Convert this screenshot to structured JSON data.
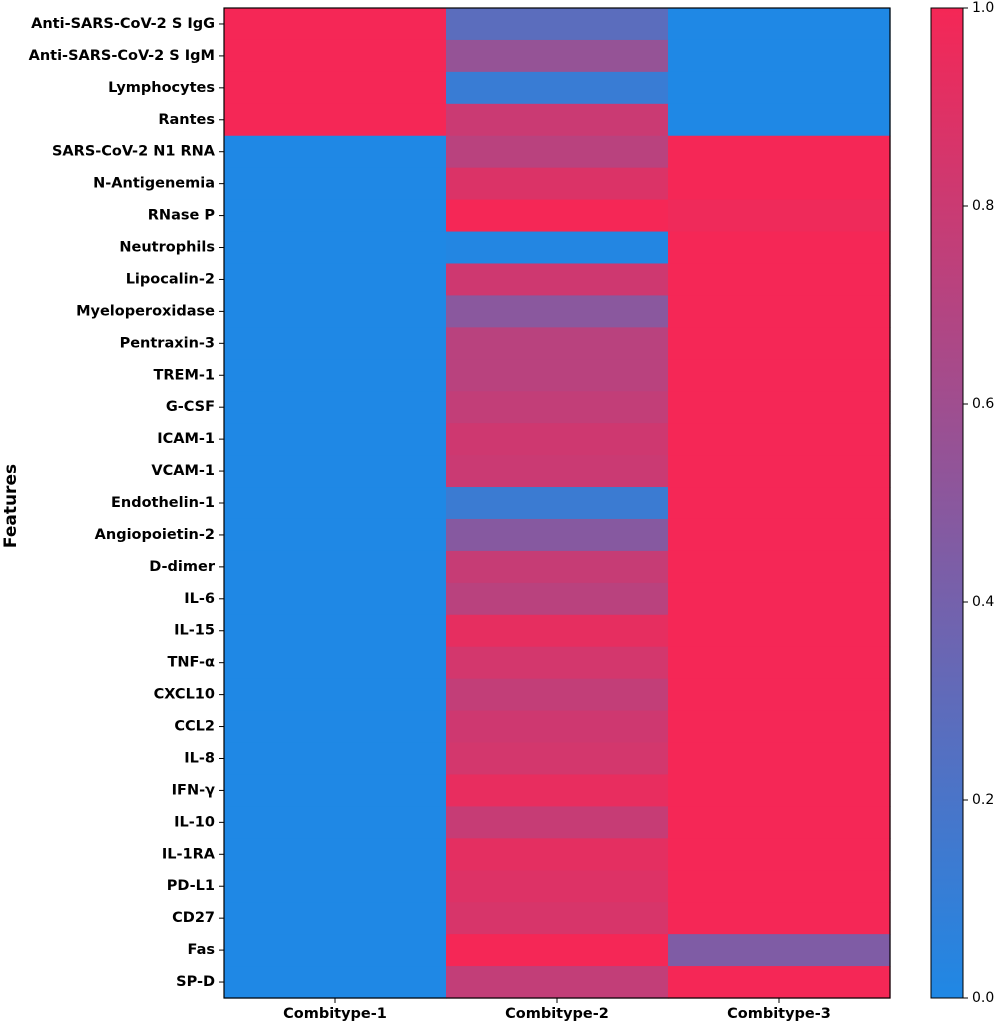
{
  "chart_data": {
    "type": "heatmap",
    "title": "",
    "xlabel": "",
    "ylabel": "Features",
    "columns": [
      "Combitype-1",
      "Combitype-2",
      "Combitype-3"
    ],
    "rows": [
      "Anti-SARS-CoV-2 S IgG",
      "Anti-SARS-CoV-2 S IgM",
      "Lymphocytes",
      "Rantes",
      "SARS-CoV-2 N1 RNA",
      "N-Antigenemia",
      "RNase P",
      "Neutrophils",
      "Lipocalin-2",
      "Myeloperoxidase",
      "Pentraxin-3",
      "TREM-1",
      "G-CSF",
      "ICAM-1",
      "VCAM-1",
      "Endothelin-1",
      "Angiopoietin-2",
      "D-dimer",
      "IL-6",
      "IL-15",
      "TNF-α",
      "CXCL10",
      "CCL2",
      "IL-8",
      "IFN-γ",
      "IL-10",
      "IL-1RA",
      "PD-L1",
      "CD27",
      "Fas",
      "SP-D"
    ],
    "values": [
      [
        1.0,
        0.28,
        0.0
      ],
      [
        1.0,
        0.55,
        0.0
      ],
      [
        1.0,
        0.12,
        0.0
      ],
      [
        1.0,
        0.8,
        0.0
      ],
      [
        0.0,
        0.72,
        1.0
      ],
      [
        0.0,
        0.88,
        1.0
      ],
      [
        0.0,
        1.0,
        0.97
      ],
      [
        0.0,
        0.02,
        1.0
      ],
      [
        0.0,
        0.82,
        1.0
      ],
      [
        0.0,
        0.5,
        1.0
      ],
      [
        0.0,
        0.72,
        1.0
      ],
      [
        0.0,
        0.72,
        1.0
      ],
      [
        0.0,
        0.76,
        1.0
      ],
      [
        0.0,
        0.82,
        1.0
      ],
      [
        0.0,
        0.8,
        1.0
      ],
      [
        0.0,
        0.13,
        1.0
      ],
      [
        0.0,
        0.48,
        1.0
      ],
      [
        0.0,
        0.78,
        1.0
      ],
      [
        0.0,
        0.72,
        1.0
      ],
      [
        0.0,
        0.93,
        1.0
      ],
      [
        0.0,
        0.84,
        1.0
      ],
      [
        0.0,
        0.76,
        1.0
      ],
      [
        0.0,
        0.82,
        1.0
      ],
      [
        0.0,
        0.84,
        1.0
      ],
      [
        0.0,
        0.94,
        1.0
      ],
      [
        0.0,
        0.78,
        1.0
      ],
      [
        0.0,
        0.92,
        1.0
      ],
      [
        0.0,
        0.89,
        1.0
      ],
      [
        0.0,
        0.86,
        1.0
      ],
      [
        0.0,
        1.0,
        0.45
      ],
      [
        0.0,
        0.76,
        1.0
      ]
    ],
    "colorbar": {
      "min": 0.0,
      "max": 1.0,
      "ticks": [
        "0.0",
        "0.2",
        "0.4",
        "0.6",
        "0.8",
        "1.0"
      ],
      "low_color": "#1f88e5",
      "high_color": "#f52756"
    }
  }
}
